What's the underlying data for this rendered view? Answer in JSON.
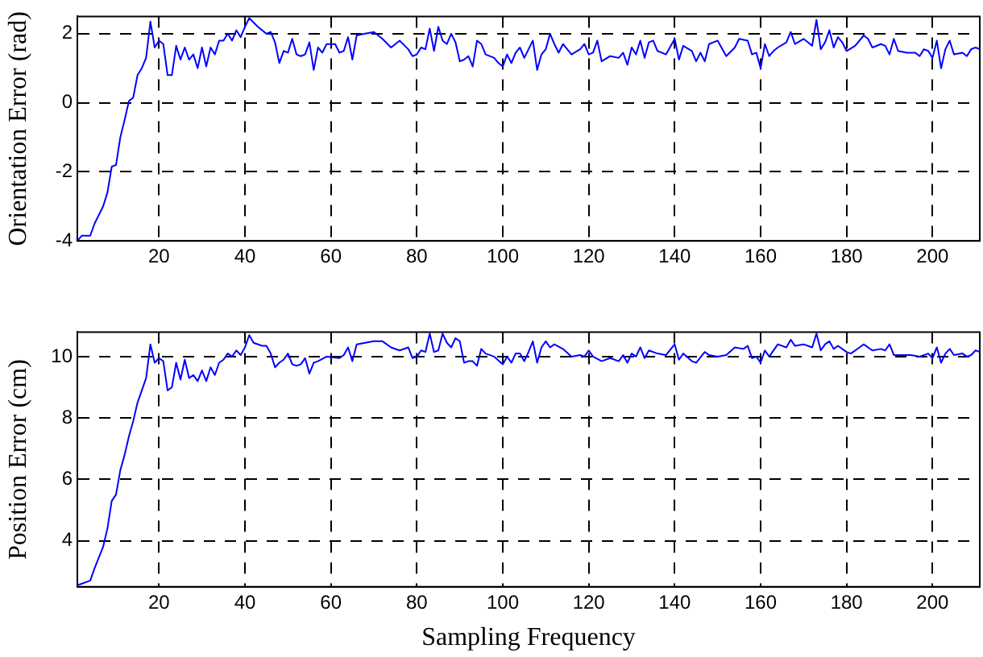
{
  "chart_data": [
    {
      "type": "line",
      "ylabel": "Orientation Error (rad)",
      "xlim": [
        1,
        211
      ],
      "ylim": [
        -4,
        2.5
      ],
      "xticks": [
        20,
        40,
        60,
        80,
        100,
        120,
        140,
        160,
        180,
        200
      ],
      "yticks": [
        -4,
        -2,
        0,
        2
      ],
      "grid": true,
      "marker": "none",
      "series": [
        {
          "color": "#0000ff",
          "x": [
            1,
            2,
            4,
            5,
            7,
            8,
            9,
            10,
            11,
            12,
            13,
            14,
            15,
            16,
            17,
            18,
            19,
            20,
            21,
            22,
            23,
            24,
            25,
            26,
            27,
            28,
            29,
            30,
            31,
            32,
            33,
            34,
            35,
            36,
            37,
            38,
            39,
            40,
            41,
            43,
            45,
            46,
            47,
            48,
            49,
            50,
            51,
            52,
            53,
            54,
            55,
            56,
            57,
            58,
            59,
            61,
            62,
            63,
            64,
            65,
            66,
            68,
            70,
            72,
            74,
            76,
            78,
            79,
            80,
            81,
            82,
            83,
            84,
            85,
            86,
            87,
            88,
            89,
            90,
            91,
            92,
            93,
            94,
            95,
            96,
            98,
            99,
            100,
            101,
            102,
            103,
            104,
            105,
            106,
            107,
            108,
            109,
            110,
            111,
            112,
            113,
            114,
            116,
            118,
            119,
            120,
            121,
            122,
            123,
            125,
            127,
            128,
            129,
            130,
            131,
            132,
            133,
            134,
            135,
            136,
            138,
            140,
            141,
            142,
            144,
            145,
            146,
            147,
            148,
            150,
            152,
            154,
            155,
            157,
            158,
            159,
            160,
            161,
            162,
            163,
            164,
            166,
            167,
            168,
            170,
            171,
            172,
            173,
            174,
            175,
            176,
            177,
            178,
            179,
            180,
            182,
            184,
            185,
            186,
            188,
            189,
            190,
            191,
            192,
            194,
            196,
            197,
            198,
            199,
            200,
            201,
            202,
            203,
            204,
            205,
            207,
            208,
            209,
            210,
            211
          ],
          "values": [
            -4.0,
            -3.85,
            -3.85,
            -3.5,
            -3.0,
            -2.6,
            -1.85,
            -1.8,
            -1.0,
            -0.5,
            0.05,
            0.15,
            0.8,
            1.0,
            1.3,
            2.35,
            1.6,
            1.8,
            1.7,
            0.8,
            0.8,
            1.65,
            1.25,
            1.6,
            1.25,
            1.4,
            1.0,
            1.6,
            1.05,
            1.6,
            1.4,
            1.8,
            1.8,
            2.0,
            1.8,
            2.1,
            1.9,
            2.2,
            2.45,
            2.2,
            2.0,
            2.05,
            1.75,
            1.15,
            1.5,
            1.45,
            1.85,
            1.4,
            1.35,
            1.4,
            1.75,
            0.95,
            1.6,
            1.45,
            1.7,
            1.7,
            1.45,
            1.5,
            1.9,
            1.25,
            1.95,
            2.0,
            2.05,
            1.85,
            1.6,
            1.8,
            1.55,
            1.35,
            1.4,
            1.6,
            1.55,
            2.15,
            1.5,
            2.2,
            1.8,
            1.7,
            2.0,
            1.75,
            1.2,
            1.25,
            1.35,
            1.05,
            1.8,
            1.7,
            1.4,
            1.3,
            1.15,
            1.05,
            1.4,
            1.15,
            1.45,
            1.6,
            1.3,
            1.55,
            1.8,
            0.95,
            1.4,
            1.55,
            2.0,
            1.7,
            1.45,
            1.7,
            1.4,
            1.55,
            1.7,
            1.4,
            1.45,
            1.8,
            1.2,
            1.35,
            1.3,
            1.45,
            1.1,
            1.6,
            1.4,
            1.8,
            1.3,
            1.75,
            1.8,
            1.5,
            1.4,
            1.85,
            1.25,
            1.65,
            1.5,
            1.2,
            1.45,
            1.2,
            1.7,
            1.8,
            1.35,
            1.6,
            1.85,
            1.8,
            1.4,
            1.45,
            1.0,
            1.7,
            1.35,
            1.5,
            1.6,
            1.75,
            2.05,
            1.7,
            1.85,
            1.75,
            1.65,
            2.4,
            1.55,
            1.75,
            2.1,
            1.6,
            1.9,
            1.75,
            1.5,
            1.65,
            1.95,
            1.85,
            1.6,
            1.7,
            1.65,
            1.4,
            1.85,
            1.5,
            1.45,
            1.45,
            1.35,
            1.55,
            1.5,
            1.3,
            1.8,
            1.0,
            1.55,
            1.8,
            1.4,
            1.45,
            1.35,
            1.55,
            1.6,
            1.55
          ]
        }
      ]
    },
    {
      "type": "line",
      "xlabel": "Sampling Frequency",
      "ylabel": "Position Error (cm)",
      "xlim": [
        1,
        211
      ],
      "ylim": [
        2.5,
        10.8
      ],
      "xticks": [
        20,
        40,
        60,
        80,
        100,
        120,
        140,
        160,
        180,
        200
      ],
      "yticks": [
        4,
        6,
        8,
        10
      ],
      "grid": true,
      "marker": "none",
      "series": [
        {
          "color": "#0000ff",
          "x": [
            1,
            2,
            4,
            5,
            7,
            8,
            9,
            10,
            11,
            12,
            13,
            14,
            15,
            16,
            17,
            18,
            19,
            20,
            21,
            22,
            23,
            24,
            25,
            26,
            27,
            28,
            29,
            30,
            31,
            32,
            33,
            34,
            35,
            36,
            37,
            38,
            39,
            40,
            41,
            42,
            44,
            45,
            46,
            47,
            48,
            49,
            50,
            51,
            52,
            53,
            54,
            55,
            56,
            57,
            59,
            62,
            63,
            64,
            65,
            66,
            68,
            70,
            72,
            74,
            76,
            78,
            79,
            80,
            81,
            82,
            83,
            84,
            85,
            86,
            87,
            88,
            89,
            90,
            91,
            92,
            93,
            94,
            95,
            96,
            98,
            100,
            101,
            102,
            103,
            104,
            105,
            106,
            107,
            108,
            109,
            110,
            111,
            112,
            114,
            116,
            118,
            119,
            120,
            121,
            123,
            125,
            127,
            128,
            129,
            130,
            131,
            132,
            133,
            134,
            136,
            138,
            140,
            141,
            142,
            144,
            145,
            147,
            148,
            150,
            152,
            154,
            156,
            157,
            158,
            159,
            160,
            161,
            162,
            164,
            166,
            167,
            168,
            170,
            172,
            173,
            174,
            175,
            176,
            177,
            178,
            180,
            181,
            183,
            184,
            186,
            188,
            189,
            190,
            191,
            193,
            195,
            197,
            199,
            200,
            201,
            202,
            203,
            204,
            205,
            207,
            208,
            209,
            210,
            211
          ],
          "values": [
            2.55,
            2.6,
            2.7,
            3.1,
            3.8,
            4.4,
            5.3,
            5.5,
            6.3,
            6.8,
            7.4,
            7.9,
            8.5,
            8.9,
            9.3,
            10.4,
            9.8,
            9.95,
            9.85,
            8.9,
            9.0,
            9.8,
            9.25,
            9.9,
            9.3,
            9.4,
            9.2,
            9.55,
            9.2,
            9.65,
            9.4,
            9.8,
            9.9,
            10.1,
            10.0,
            10.2,
            10.05,
            10.3,
            10.7,
            10.45,
            10.35,
            10.35,
            10.1,
            9.65,
            9.8,
            9.9,
            10.1,
            9.75,
            9.7,
            9.75,
            9.95,
            9.45,
            9.8,
            9.85,
            10.0,
            9.95,
            10.05,
            10.3,
            9.85,
            10.4,
            10.45,
            10.5,
            10.5,
            10.3,
            10.2,
            10.3,
            9.95,
            10.0,
            10.2,
            10.15,
            10.75,
            10.15,
            10.2,
            10.75,
            10.45,
            10.3,
            10.6,
            10.5,
            9.8,
            9.85,
            9.85,
            9.7,
            10.25,
            10.1,
            10.0,
            9.75,
            10.0,
            9.8,
            10.1,
            10.1,
            9.85,
            10.15,
            10.5,
            9.8,
            10.3,
            10.5,
            10.3,
            10.4,
            10.25,
            10.0,
            10.05,
            10.0,
            10.2,
            10.0,
            9.85,
            9.95,
            9.85,
            10.05,
            9.8,
            10.1,
            10.0,
            10.3,
            9.95,
            10.2,
            10.1,
            10.05,
            10.4,
            9.9,
            10.1,
            9.85,
            9.8,
            10.15,
            10.05,
            10.0,
            10.05,
            10.3,
            10.25,
            10.35,
            9.95,
            10.0,
            9.8,
            10.2,
            10.0,
            10.4,
            10.3,
            10.55,
            10.35,
            10.4,
            10.3,
            10.75,
            10.2,
            10.4,
            10.5,
            10.25,
            10.35,
            10.15,
            10.1,
            10.3,
            10.4,
            10.2,
            10.25,
            10.2,
            10.4,
            10.05,
            10.05,
            10.05,
            10.0,
            10.1,
            9.95,
            10.3,
            9.8,
            10.1,
            10.25,
            10.05,
            10.1,
            10.0,
            10.05,
            10.2,
            10.15
          ]
        }
      ]
    }
  ]
}
